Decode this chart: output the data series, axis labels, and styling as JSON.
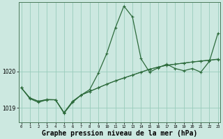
{
  "background_color": "#cce8e0",
  "plot_bg_color": "#cce8e0",
  "grid_color": "#99ccbb",
  "line_color": "#2d6b3c",
  "xlabel": "Graphe pression niveau de la mer (hPa)",
  "xlabel_fontsize": 7,
  "xticks": [
    0,
    1,
    2,
    3,
    4,
    5,
    6,
    7,
    8,
    9,
    10,
    11,
    12,
    13,
    14,
    15,
    16,
    17,
    18,
    19,
    20,
    21,
    22,
    23
  ],
  "yticks": [
    1019,
    1020
  ],
  "ylim": [
    1018.6,
    1021.9
  ],
  "xlim": [
    -0.3,
    23.3
  ],
  "main_line_x": [
    0,
    1,
    2,
    3,
    4,
    5,
    6,
    7,
    8,
    9,
    10,
    11,
    12,
    13,
    14,
    15,
    16,
    17,
    18,
    19,
    20,
    21,
    22,
    23
  ],
  "main_line_y": [
    1019.55,
    1019.25,
    1019.15,
    1019.22,
    1019.22,
    1018.85,
    1019.15,
    1019.35,
    1019.5,
    1019.95,
    1020.5,
    1021.2,
    1021.8,
    1021.5,
    1020.35,
    1019.98,
    1020.1,
    1020.2,
    1020.08,
    1020.02,
    1020.08,
    1019.98,
    1020.28,
    1021.05
  ],
  "trend1_y": [
    1019.55,
    1019.27,
    1019.18,
    1019.22,
    1019.22,
    1018.86,
    1019.17,
    1019.35,
    1019.45,
    1019.55,
    1019.65,
    1019.74,
    1019.82,
    1019.9,
    1019.98,
    1020.06,
    1020.12,
    1020.17,
    1020.2,
    1020.23,
    1020.26,
    1020.28,
    1020.31,
    1020.33
  ],
  "trend2_y": [
    1019.55,
    1019.27,
    1019.18,
    1019.23,
    1019.22,
    1018.87,
    1019.18,
    1019.35,
    1019.45,
    1019.55,
    1019.65,
    1019.74,
    1019.82,
    1019.9,
    1019.98,
    1020.06,
    1020.12,
    1020.17,
    1020.2,
    1020.23,
    1020.26,
    1020.29,
    1020.31,
    1020.34
  ]
}
